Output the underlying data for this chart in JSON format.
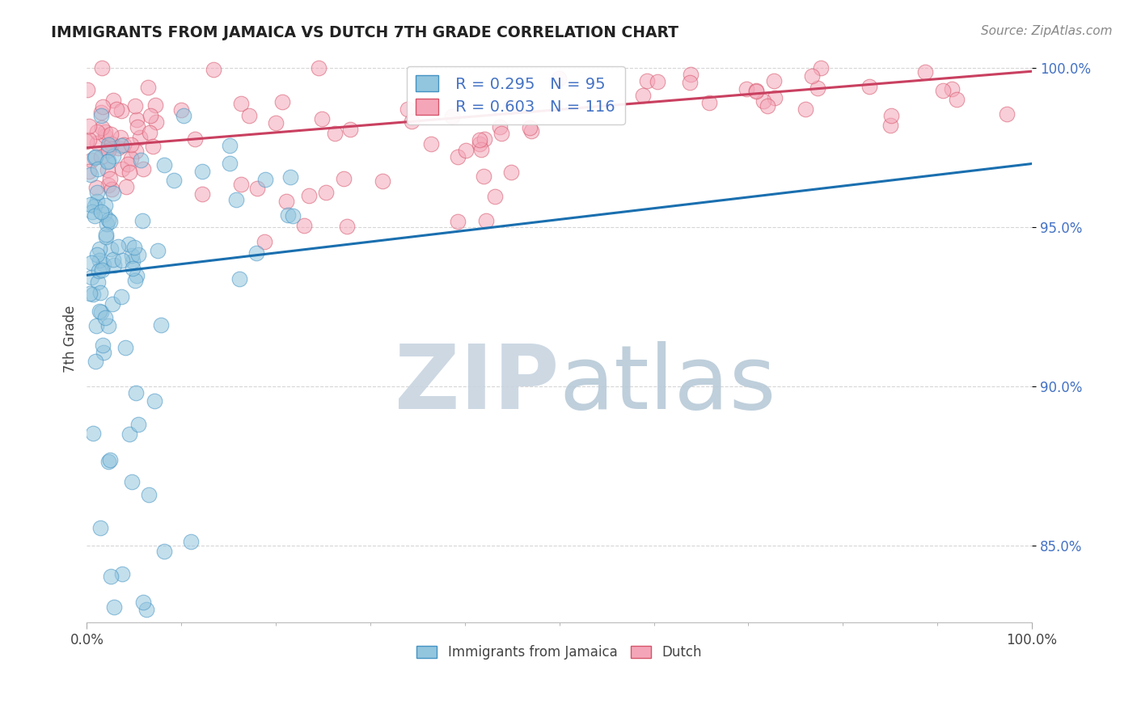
{
  "title": "IMMIGRANTS FROM JAMAICA VS DUTCH 7TH GRADE CORRELATION CHART",
  "source": "Source: ZipAtlas.com",
  "legend_label_1": "Immigrants from Jamaica",
  "legend_label_2": "Dutch",
  "ylabel": "7th Grade",
  "xlim": [
    0.0,
    1.0
  ],
  "ylim": [
    0.826,
    1.004
  ],
  "yticks": [
    0.85,
    0.9,
    0.95,
    1.0
  ],
  "ytick_labels": [
    "85.0%",
    "90.0%",
    "95.0%",
    "100.0%"
  ],
  "xtick_positions": [
    0.0,
    1.0
  ],
  "xtick_labels": [
    "0.0%",
    "100.0%"
  ],
  "R1": 0.295,
  "N1": 95,
  "R2": 0.603,
  "N2": 116,
  "color_blue_fill": "#92c5de",
  "color_blue_edge": "#4393c3",
  "color_pink_fill": "#f4a6b8",
  "color_pink_edge": "#d6546a",
  "color_blue_line": "#1a6faf",
  "color_pink_line": "#c94060",
  "color_blue_text": "#4472c4",
  "color_legend_text": "#333333",
  "watermark_ZIP_color": "#c8d4e0",
  "watermark_atlas_color": "#b8cad8",
  "background": "#ffffff",
  "grid_color": "#cccccc",
  "title_color": "#222222",
  "source_color": "#888888"
}
